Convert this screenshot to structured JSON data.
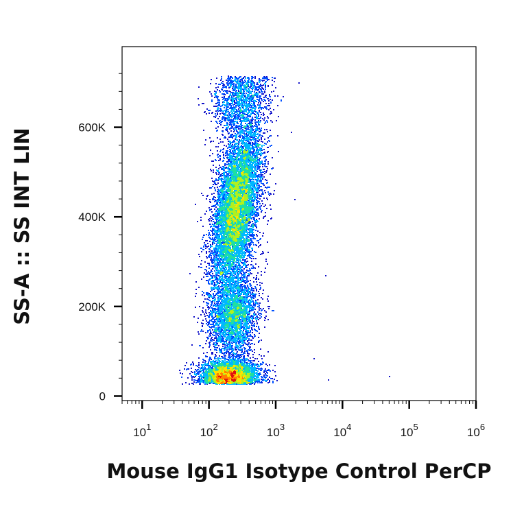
{
  "chart_data": {
    "type": "scatter",
    "xlabel": "Mouse IgG1 Isotype Control PerCP",
    "ylabel": "SS-A :: SS INT LIN",
    "x_scale": "log",
    "y_scale": "linear",
    "xlim": [
      5,
      1000000
    ],
    "ylim": [
      -10000,
      780000
    ],
    "x_ticks": [
      {
        "value": 10,
        "base": "10",
        "exp": "1"
      },
      {
        "value": 100,
        "base": "10",
        "exp": "2"
      },
      {
        "value": 1000,
        "base": "10",
        "exp": "3"
      },
      {
        "value": 10000,
        "base": "10",
        "exp": "4"
      },
      {
        "value": 100000,
        "base": "10",
        "exp": "5"
      },
      {
        "value": 1000000,
        "base": "10",
        "exp": "6"
      }
    ],
    "y_ticks": [
      {
        "value": 0,
        "label": "0"
      },
      {
        "value": 200000,
        "label": "200K"
      },
      {
        "value": 400000,
        "label": "400K"
      },
      {
        "value": 600000,
        "label": "600K"
      }
    ],
    "density_colormap": [
      "#1010c8",
      "#0050ff",
      "#00b8ff",
      "#20e0a0",
      "#b0f020",
      "#ffe000",
      "#ff8000",
      "#e01010"
    ],
    "populations": [
      {
        "x_center": 250,
        "y_center": 420000,
        "count": 9000,
        "peak_density": 1.0
      },
      {
        "x_center": 230,
        "y_center": 180000,
        "count": 3000,
        "peak_density": 0.55
      },
      {
        "x_center": 200,
        "y_center": 45000,
        "count": 4500,
        "peak_density": 1.0
      },
      {
        "x_center": 300,
        "y_center": 670000,
        "count": 1500,
        "peak_density": 0.35
      }
    ],
    "outliers": [
      {
        "x": 5500,
        "y": 270000
      },
      {
        "x": 3700,
        "y": 85000
      },
      {
        "x": 6000,
        "y": 38000
      },
      {
        "x": 50000,
        "y": 45000
      },
      {
        "x": 1700,
        "y": 590000
      },
      {
        "x": 1900,
        "y": 440000
      },
      {
        "x": 2200,
        "y": 700000
      }
    ]
  }
}
